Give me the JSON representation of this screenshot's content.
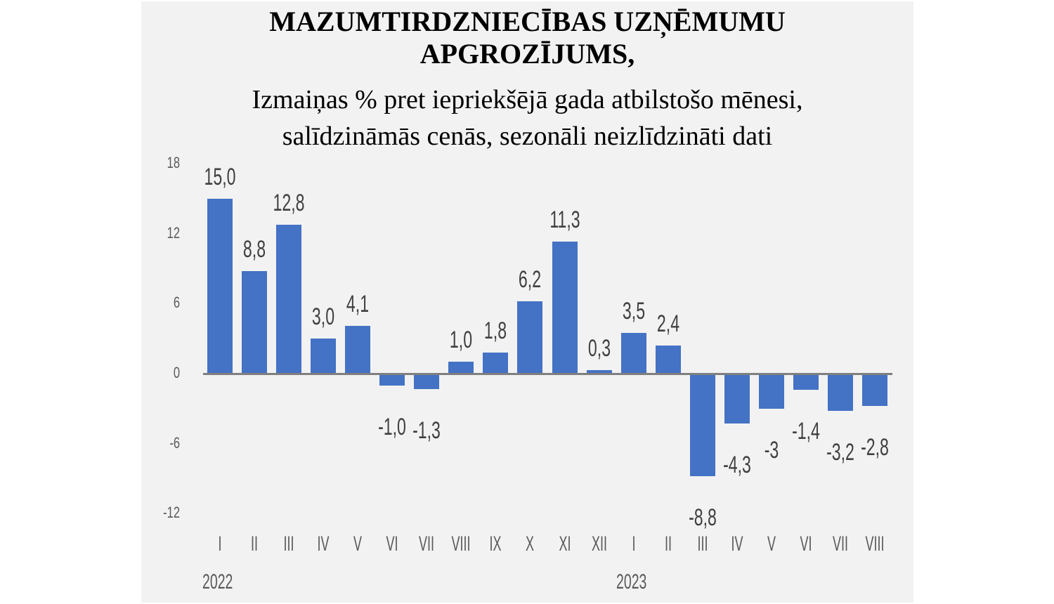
{
  "title": {
    "line1": "MAZUMTIRDZNIECĪBAS UZŅĒMUMU",
    "line2": "APGROZĪJUMS,",
    "subtitle1": "Izmaiņas % pret iepriekšējā gada atbilstošo mēnesi,",
    "subtitle2": "salīdzināmās cenās, sezonāli neizlīdzināti dati"
  },
  "colors": {
    "bar": "#4472c4",
    "background": "#f2f2f2",
    "axis": "#7f7f7f"
  },
  "yaxis": {
    "ticks": [
      "18",
      "12",
      "6",
      "0",
      "-6",
      "-12"
    ]
  },
  "xaxis": {
    "months": [
      "I",
      "II",
      "III",
      "IV",
      "V",
      "VI",
      "VII",
      "VIII",
      "IX",
      "X",
      "XI",
      "XII",
      "I",
      "II",
      "III",
      "IV",
      "V",
      "VI",
      "VII",
      "VIII"
    ],
    "years": [
      "2022",
      "2023"
    ]
  },
  "labels": [
    "15,0",
    "8,8",
    "12,8",
    "3,0",
    "4,1",
    "-1,0",
    "-1,3",
    "1,0",
    "1,8",
    "6,2",
    "11,3",
    "0,3",
    "3,5",
    "2,4",
    "-8,8",
    "-4,3",
    "-3",
    "-1,4",
    "-3,2",
    "-2,8"
  ],
  "chart_data": {
    "type": "bar",
    "title": "MAZUMTIRDZNIECĪBAS UZŅĒMUMU APGROZĪJUMS, Izmaiņas % pret iepriekšējā gada atbilstošo mēnesi, salīdzināmās cenās, sezonāli neizlīdzināti dati",
    "categories": [
      "2022 I",
      "2022 II",
      "2022 III",
      "2022 IV",
      "2022 V",
      "2022 VI",
      "2022 VII",
      "2022 VIII",
      "2022 IX",
      "2022 X",
      "2022 XI",
      "2022 XII",
      "2023 I",
      "2023 II",
      "2023 III",
      "2023 IV",
      "2023 V",
      "2023 VI",
      "2023 VII",
      "2023 VIII"
    ],
    "values": [
      15.0,
      8.8,
      12.8,
      3.0,
      4.1,
      -1.0,
      -1.3,
      1.0,
      1.8,
      6.2,
      11.3,
      0.3,
      3.5,
      2.4,
      -8.8,
      -4.3,
      -3.0,
      -1.4,
      -3.2,
      -2.8
    ],
    "xlabel": "",
    "ylabel": "",
    "ylim": [
      -12,
      18
    ],
    "yticks": [
      -12,
      -6,
      0,
      6,
      12,
      18
    ],
    "grid": false,
    "legend": "none",
    "data_labels": true
  }
}
